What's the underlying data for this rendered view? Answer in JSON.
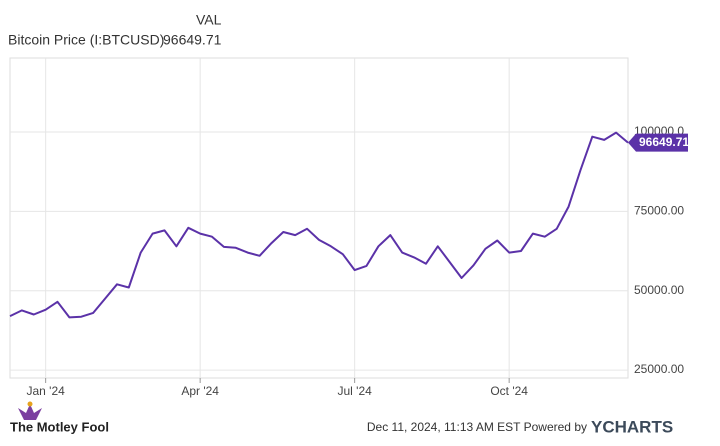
{
  "chart_data": {
    "type": "line",
    "legend_header": "VAL",
    "categories": [
      null,
      null,
      null,
      "Jan '24",
      null,
      null,
      null,
      null,
      null,
      null,
      null,
      null,
      null,
      null,
      null,
      null,
      "Apr '24",
      null,
      null,
      null,
      null,
      null,
      null,
      null,
      null,
      null,
      null,
      null,
      null,
      "Jul '24",
      null,
      null,
      null,
      null,
      null,
      null,
      null,
      null,
      null,
      null,
      null,
      null,
      "Oct '24",
      null,
      null,
      null,
      null,
      null,
      null,
      null,
      null,
      null,
      null
    ],
    "series": [
      {
        "name": "Bitcoin Price (I:BTCUSD)",
        "color": "#5b32a8",
        "values": [
          42000,
          43800,
          42500,
          44000,
          46500,
          41600,
          41800,
          43000,
          47500,
          52000,
          51000,
          62000,
          68000,
          69000,
          64000,
          69800,
          68000,
          67000,
          63800,
          63500,
          62000,
          61000,
          65000,
          68500,
          67500,
          69500,
          66000,
          64000,
          61500,
          56500,
          57800,
          64000,
          67500,
          62000,
          60500,
          58500,
          64000,
          59000,
          54000,
          58000,
          63200,
          65800,
          62000,
          62500,
          68000,
          67000,
          69500,
          76500,
          88000,
          98500,
          97500,
          99800,
          96649.71
        ]
      }
    ],
    "ylim": [
      22500,
      123300
    ],
    "yticks": [
      {
        "value": 25000,
        "label": "25000.00"
      },
      {
        "value": 50000,
        "label": "50000.00"
      },
      {
        "value": 75000,
        "label": "75000.00"
      },
      {
        "value": 100000,
        "label": "100000.0"
      }
    ],
    "grid": true
  },
  "footer": {
    "timestamp": "Dec 11, 2024, 11:13 AM EST Powered by",
    "brand": "YCHARTS",
    "publisher": "The Motley Fool"
  }
}
